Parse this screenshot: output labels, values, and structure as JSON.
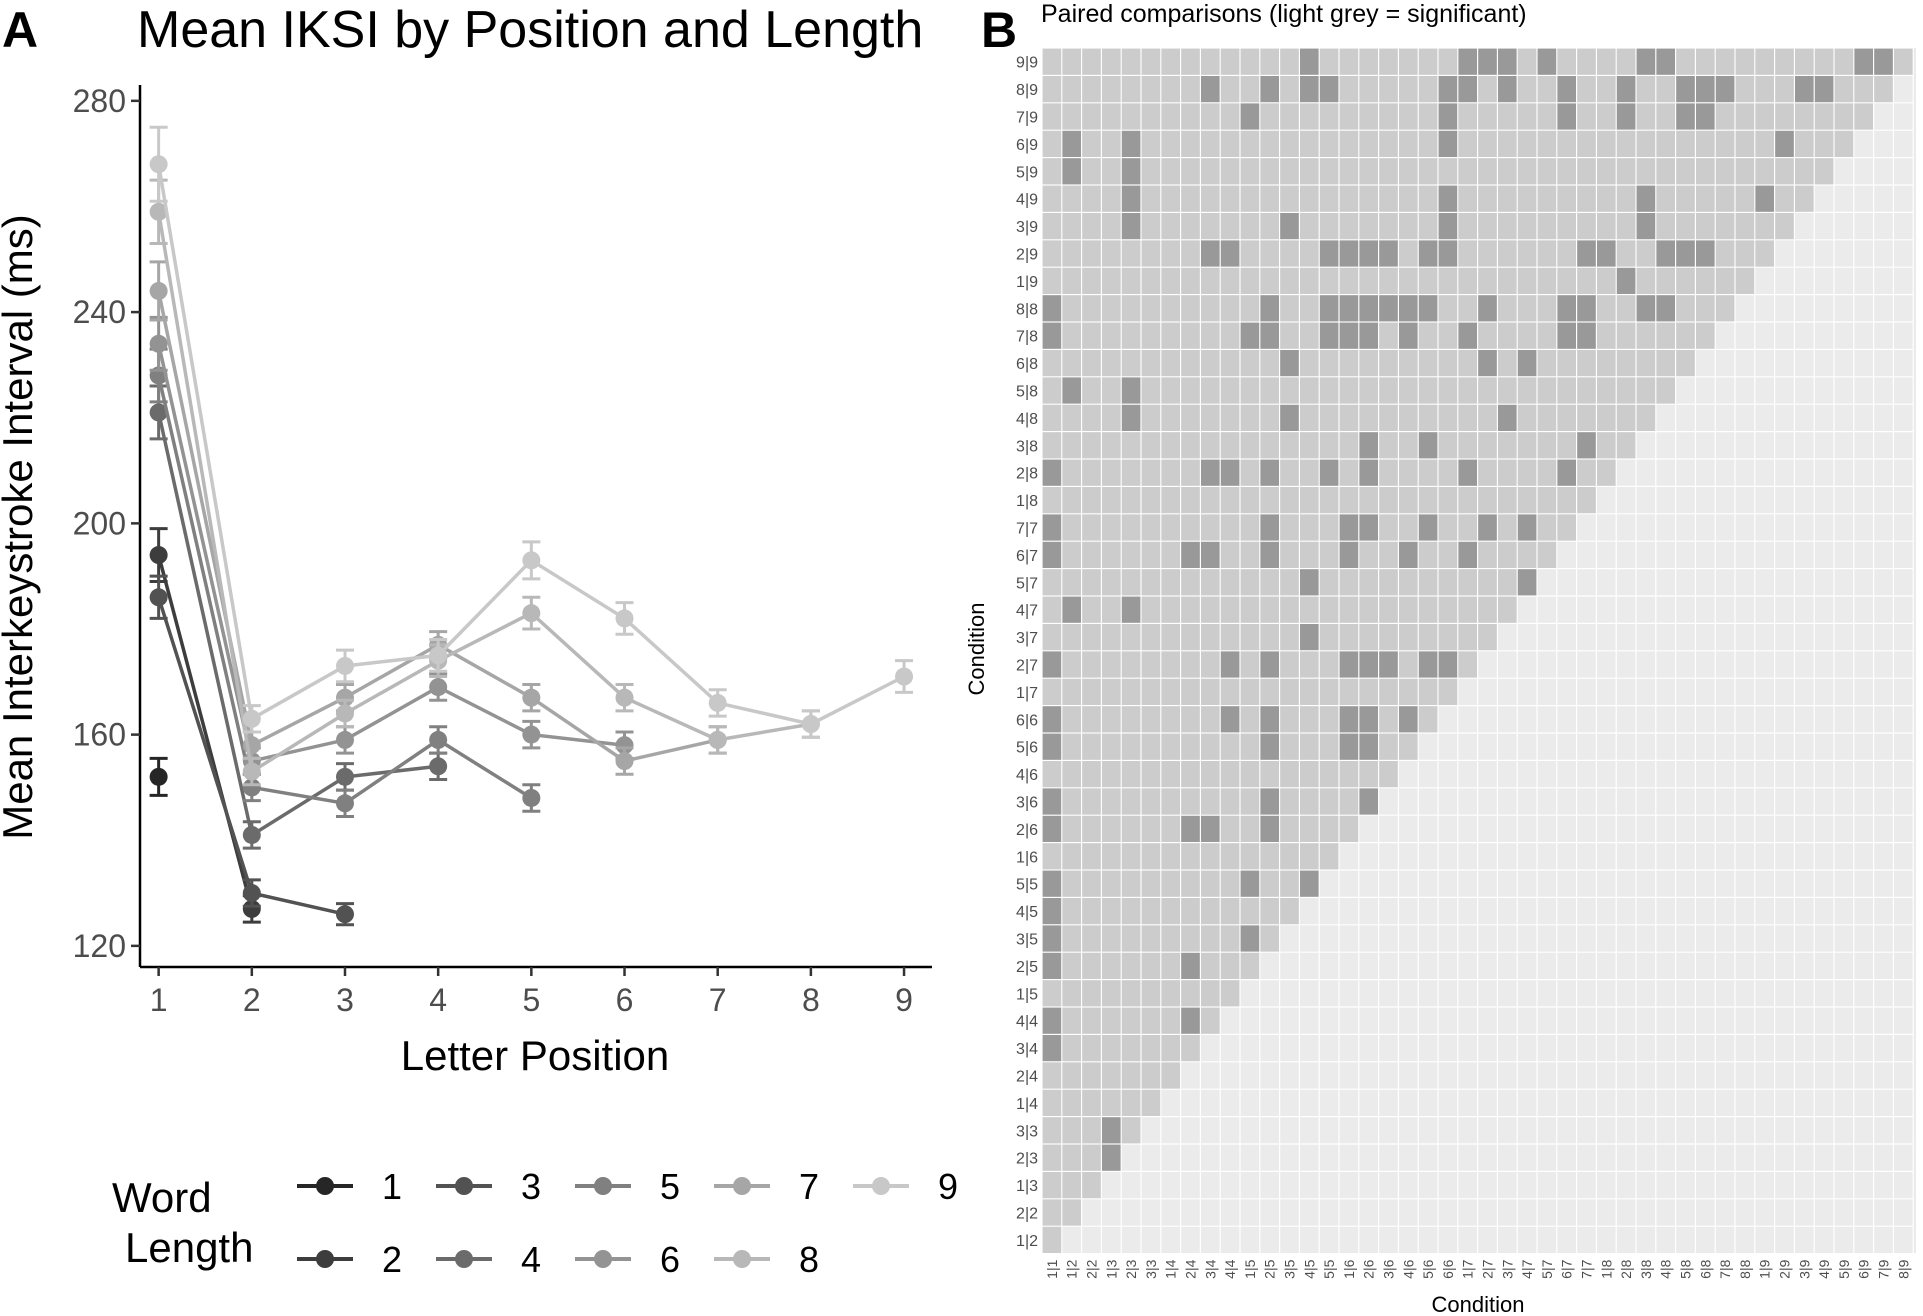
{
  "panel_a": {
    "letter": "A",
    "chart_data": {
      "type": "line",
      "title": "Mean IKSI by Position and Length",
      "xlabel": "Letter Position",
      "ylabel": "Mean Interkeystroke Interval (ms)",
      "x_ticks": [
        "1",
        "2",
        "3",
        "4",
        "5",
        "6",
        "7",
        "8",
        "9"
      ],
      "y_ticks": [
        "120",
        "160",
        "200",
        "240",
        "280"
      ],
      "xlim": [
        0.8,
        9.3
      ],
      "ylim": [
        116,
        283
      ],
      "grid": false,
      "legend": {
        "title_line1": "Word",
        "title_line2": "Length",
        "placement": "bottom"
      },
      "series": [
        {
          "name": "1",
          "color": "#262626",
          "points": [
            [
              1,
              152
            ]
          ],
          "err": [
            3.5
          ]
        },
        {
          "name": "2",
          "color": "#3d3d3d",
          "points": [
            [
              1,
              194
            ],
            [
              2,
              127
            ]
          ],
          "err": [
            5,
            2.5
          ]
        },
        {
          "name": "3",
          "color": "#525252",
          "points": [
            [
              1,
              186
            ],
            [
              2,
              130
            ],
            [
              3,
              126
            ]
          ],
          "err": [
            4,
            2.5,
            2
          ]
        },
        {
          "name": "4",
          "color": "#6b6b6b",
          "points": [
            [
              1,
              221
            ],
            [
              2,
              141
            ],
            [
              3,
              152
            ],
            [
              4,
              154
            ]
          ],
          "err": [
            5,
            2.5,
            2.5,
            2.5
          ]
        },
        {
          "name": "5",
          "color": "#808080",
          "points": [
            [
              1,
              228
            ],
            [
              2,
              150
            ],
            [
              3,
              147
            ],
            [
              4,
              159
            ],
            [
              5,
              148
            ]
          ],
          "err": [
            5,
            2.5,
            2.5,
            2.5,
            2.5
          ]
        },
        {
          "name": "6",
          "color": "#939393",
          "points": [
            [
              1,
              234
            ],
            [
              2,
              155
            ],
            [
              3,
              159
            ],
            [
              4,
              169
            ],
            [
              5,
              160
            ],
            [
              6,
              158
            ]
          ],
          "err": [
            5,
            2.5,
            2.5,
            2.5,
            2.5,
            2.5
          ]
        },
        {
          "name": "7",
          "color": "#a6a6a6",
          "points": [
            [
              1,
              244
            ],
            [
              2,
              158
            ],
            [
              3,
              167
            ],
            [
              4,
              177
            ],
            [
              5,
              167
            ],
            [
              6,
              155
            ],
            [
              7,
              159
            ]
          ],
          "err": [
            5.5,
            2.5,
            2.5,
            2.5,
            2.5,
            2.5,
            2.5
          ]
        },
        {
          "name": "8",
          "color": "#b8b8b8",
          "points": [
            [
              1,
              259
            ],
            [
              2,
              153
            ],
            [
              3,
              164
            ],
            [
              4,
              174
            ],
            [
              5,
              183
            ],
            [
              6,
              167
            ],
            [
              7,
              159
            ],
            [
              8,
              162
            ]
          ],
          "err": [
            6,
            2.5,
            2.5,
            3,
            3,
            2.5,
            2.5,
            2.5
          ]
        },
        {
          "name": "9",
          "color": "#c8c8c8",
          "points": [
            [
              1,
              268
            ],
            [
              2,
              163
            ],
            [
              3,
              173
            ],
            [
              4,
              175
            ],
            [
              5,
              193
            ],
            [
              6,
              182
            ],
            [
              7,
              166
            ],
            [
              8,
              162
            ],
            [
              9,
              171
            ]
          ],
          "err": [
            7,
            2.5,
            3,
            3,
            3.5,
            3,
            2.5,
            2.5,
            3
          ]
        }
      ]
    }
  },
  "panel_b": {
    "letter": "B",
    "chart_data": {
      "type": "heatmap",
      "title": "Paired comparisons (light grey = significant)",
      "xlabel": "Condition",
      "ylabel": "Condition",
      "grid": true,
      "colors": {
        "significant": "#cccccc",
        "nonsignificant": "#999999",
        "empty": "#ebebeb"
      },
      "conditions": [
        "1|2",
        "2|2",
        "1|3",
        "2|3",
        "3|3",
        "1|4",
        "2|4",
        "3|4",
        "4|4",
        "1|5",
        "2|5",
        "3|5",
        "4|5",
        "5|5",
        "1|6",
        "2|6",
        "3|6",
        "4|6",
        "5|6",
        "6|6",
        "1|7",
        "2|7",
        "3|7",
        "4|7",
        "5|7",
        "6|7",
        "7|7",
        "1|8",
        "2|8",
        "3|8",
        "4|8",
        "5|8",
        "6|8",
        "7|8",
        "8|8",
        "1|9",
        "2|9",
        "3|9",
        "4|9",
        "5|9",
        "6|9",
        "7|9",
        "8|9",
        "9|9"
      ],
      "x_tick_labels": [
        "1|1",
        "1|2",
        "2|2",
        "1|3",
        "2|3",
        "3|3",
        "1|4",
        "2|4",
        "3|4",
        "4|4",
        "1|5",
        "2|5",
        "3|5",
        "4|5",
        "5|5",
        "1|6",
        "2|6",
        "3|6",
        "4|6",
        "5|6",
        "6|6",
        "1|7",
        "2|7",
        "3|7",
        "4|7",
        "5|7",
        "6|7",
        "7|7",
        "1|8",
        "2|8",
        "3|8",
        "4|8",
        "5|8",
        "6|8",
        "7|8",
        "8|8",
        "1|9",
        "2|9",
        "3|9",
        "4|9",
        "5|9",
        "6|9",
        "7|9",
        "8|9"
      ],
      "nonsignificant_cells": {
        "9|9": [
          "4|5",
          "1|7",
          "2|7",
          "3|7",
          "5|7",
          "3|8",
          "4|8",
          "6|9",
          "7|9"
        ],
        "8|9": [
          "3|4",
          "2|5",
          "4|5",
          "5|5",
          "6|6",
          "1|7",
          "3|7",
          "6|7",
          "2|8",
          "5|8",
          "6|8",
          "7|8",
          "3|9",
          "4|9",
          "9|9"
        ],
        "7|9": [
          "1|5",
          "6|6",
          "6|7",
          "2|8",
          "5|8",
          "6|8"
        ],
        "6|9": [
          "1|2",
          "2|3",
          "6|6",
          "2|9"
        ],
        "5|9": [
          "1|2",
          "2|3"
        ],
        "4|9": [
          "2|3",
          "6|6",
          "3|8",
          "1|9"
        ],
        "3|9": [
          "2|3",
          "3|5",
          "6|6",
          "3|8"
        ],
        "2|9": [
          "3|4",
          "4|4",
          "5|5",
          "1|6",
          "2|6",
          "3|6",
          "5|6",
          "6|6",
          "7|7",
          "1|8",
          "4|8",
          "5|8",
          "6|8"
        ],
        "1|9": [
          "2|8"
        ],
        "8|8": [
          "1|1",
          "2|5",
          "5|5",
          "1|6",
          "2|6",
          "3|6",
          "4|6",
          "5|6",
          "2|7",
          "6|7",
          "7|7",
          "3|8",
          "4|8"
        ],
        "7|8": [
          "1|1",
          "1|5",
          "2|5",
          "5|5",
          "1|6",
          "2|6",
          "4|6",
          "1|7",
          "6|7",
          "7|7"
        ],
        "6|8": [
          "3|5",
          "2|7",
          "4|7"
        ],
        "5|8": [
          "1|2",
          "2|3"
        ],
        "4|8": [
          "2|3",
          "3|5",
          "3|7"
        ],
        "3|8": [
          "2|6",
          "5|6",
          "7|7"
        ],
        "2|8": [
          "1|1",
          "3|4",
          "4|4",
          "2|5",
          "5|5",
          "2|6",
          "1|7",
          "6|7"
        ],
        "1|8": [],
        "7|7": [
          "1|1",
          "2|5",
          "1|6",
          "2|6",
          "5|6",
          "2|7",
          "4|7"
        ],
        "6|7": [
          "1|1",
          "2|4",
          "3|4",
          "2|5",
          "1|6",
          "4|6",
          "1|7"
        ],
        "5|7": [
          "4|5",
          "4|7"
        ],
        "4|7": [
          "1|2",
          "2|3"
        ],
        "3|7": [
          "4|5"
        ],
        "2|7": [
          "1|1",
          "4|4",
          "2|5",
          "1|6",
          "2|6",
          "3|6",
          "5|6",
          "6|6"
        ],
        "1|7": [],
        "6|6": [
          "1|1",
          "4|4",
          "2|5",
          "1|6",
          "2|6",
          "4|6"
        ],
        "5|6": [
          "1|1",
          "2|5",
          "1|6",
          "2|6"
        ],
        "4|6": [],
        "3|6": [
          "1|1",
          "2|5",
          "2|6"
        ],
        "2|6": [
          "1|1",
          "2|4",
          "3|4",
          "2|5"
        ],
        "1|6": [],
        "5|5": [
          "1|1",
          "4|5",
          "1|5"
        ],
        "4|5": [
          "1|1"
        ],
        "3|5": [
          "1|1",
          "1|5"
        ],
        "2|5": [
          "1|1",
          "2|4"
        ],
        "1|5": [],
        "4|4": [
          "1|1",
          "2|4"
        ],
        "3|4": [
          "1|1"
        ],
        "2|4": [],
        "1|4": [],
        "3|3": [
          "1|3"
        ],
        "2|3": [
          "1|3"
        ],
        "1|3": [],
        "2|2": [],
        "1|2": []
      }
    }
  }
}
